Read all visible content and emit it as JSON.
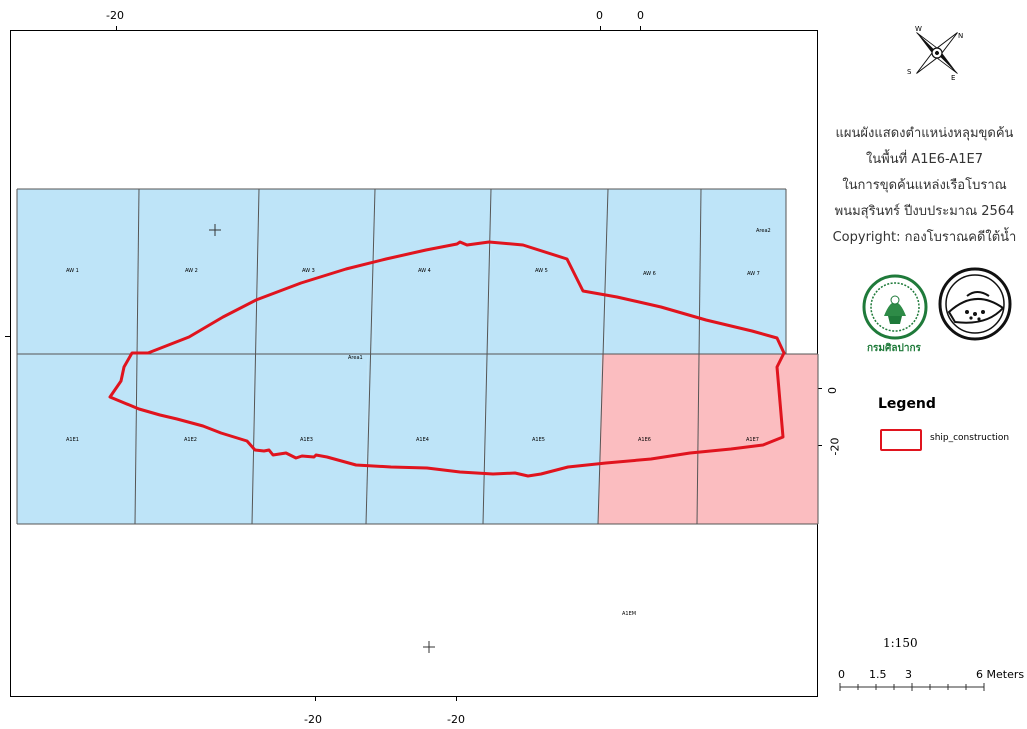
{
  "map": {
    "top_ticks": [
      "-20",
      "0",
      "0"
    ],
    "bottom_ticks": [
      "-20",
      "-20"
    ],
    "right_ticks": [
      "0",
      "-20"
    ],
    "cells": {
      "top_row": [
        "AW 1",
        "AW 2",
        "AW 3",
        "AW 4",
        "AW 5",
        "AW 6",
        "AW 7"
      ],
      "bottom_row": [
        "A1E1",
        "A1E2",
        "A1E3",
        "A1E4",
        "A1E5",
        "A1E6",
        "A1E7"
      ],
      "area_labels": [
        "Area2",
        "Area1",
        "A1EM"
      ]
    },
    "colors": {
      "blue_cell": "#bee4f8",
      "pink_cell": "#fbbdc0",
      "outline": "#e0141e",
      "grid_line": "#555555"
    }
  },
  "title_block": {
    "lines": [
      "แผนผังแสดงตำแหน่งหลุมขุดค้น",
      "ในพื้นที่ A1E6-A1E7",
      "ในการขุดค้นแหล่งเรือโบราณ",
      "พนมสุรินทร์ ปีงบประมาณ 2564",
      "Copyright: กองโบราณคดีใต้น้ำ"
    ]
  },
  "logos": {
    "left_caption": "กรมศิลปากร"
  },
  "legend": {
    "title": "Legend",
    "item_label": "ship_construction"
  },
  "scale": {
    "ratio": "1:150",
    "labels": [
      "0",
      "1.5",
      "3",
      "6 Meters"
    ]
  },
  "north_arrow": {
    "letters": [
      "N",
      "E",
      "S",
      "W"
    ]
  }
}
